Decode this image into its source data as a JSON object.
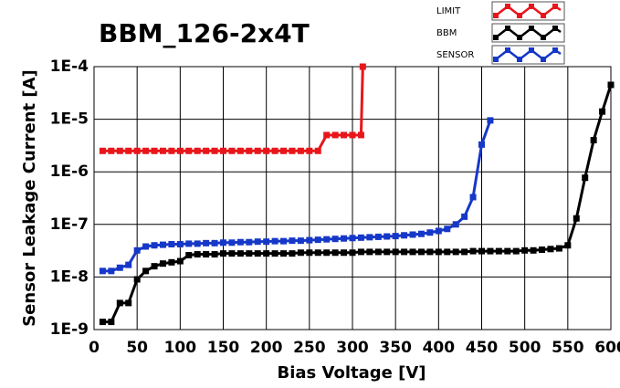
{
  "chart_data": {
    "type": "line",
    "title": "BBM_126-2x4T",
    "xlabel": "Bias Voltage [V]",
    "ylabel": "Sensor Leakage Current [A]",
    "log_y": true,
    "grid": true,
    "legend": "upper right",
    "xlim": [
      0,
      600
    ],
    "xticks": [
      0,
      50,
      100,
      150,
      200,
      250,
      300,
      350,
      400,
      450,
      500,
      550,
      600
    ],
    "ylim": [
      1e-09,
      0.0001
    ],
    "yticks": [
      {
        "value": 1e-09,
        "label": "1E-9"
      },
      {
        "value": 1e-08,
        "label": "1E-8"
      },
      {
        "value": 1e-07,
        "label": "1E-7"
      },
      {
        "value": 1e-06,
        "label": "1E-6"
      },
      {
        "value": 1e-05,
        "label": "1E-5"
      },
      {
        "value": 0.0001,
        "label": "1E-4"
      }
    ],
    "series": [
      {
        "name": "LIMIT",
        "color": "#e8161b",
        "x": [
          10,
          20,
          30,
          40,
          50,
          60,
          70,
          80,
          90,
          100,
          110,
          120,
          130,
          140,
          150,
          160,
          170,
          180,
          190,
          200,
          210,
          220,
          230,
          240,
          250,
          260,
          270,
          280,
          290,
          300,
          310,
          312
        ],
        "values": [
          2.5e-06,
          2.5e-06,
          2.5e-06,
          2.5e-06,
          2.5e-06,
          2.5e-06,
          2.5e-06,
          2.5e-06,
          2.5e-06,
          2.5e-06,
          2.5e-06,
          2.5e-06,
          2.5e-06,
          2.5e-06,
          2.5e-06,
          2.5e-06,
          2.5e-06,
          2.5e-06,
          2.5e-06,
          2.5e-06,
          2.5e-06,
          2.5e-06,
          2.5e-06,
          2.5e-06,
          2.5e-06,
          2.5e-06,
          5e-06,
          5e-06,
          5e-06,
          5e-06,
          5e-06,
          0.0001
        ]
      },
      {
        "name": "BBM",
        "color": "#000000",
        "x": [
          10,
          20,
          30,
          40,
          50,
          60,
          70,
          80,
          90,
          100,
          110,
          120,
          130,
          140,
          150,
          160,
          170,
          180,
          190,
          200,
          210,
          220,
          230,
          240,
          250,
          260,
          270,
          280,
          290,
          300,
          310,
          320,
          330,
          340,
          350,
          360,
          370,
          380,
          390,
          400,
          410,
          420,
          430,
          440,
          450,
          460,
          470,
          480,
          490,
          500,
          510,
          520,
          530,
          540,
          550,
          560,
          570,
          580,
          590,
          600
        ],
        "values": [
          1.4e-09,
          1.4e-09,
          3.2e-09,
          3.2e-09,
          9e-09,
          1.3e-08,
          1.6e-08,
          1.8e-08,
          1.9e-08,
          2e-08,
          2.6e-08,
          2.7e-08,
          2.7e-08,
          2.7e-08,
          2.8e-08,
          2.8e-08,
          2.8e-08,
          2.8e-08,
          2.8e-08,
          2.8e-08,
          2.8e-08,
          2.8e-08,
          2.8e-08,
          2.9e-08,
          2.9e-08,
          2.9e-08,
          2.9e-08,
          2.9e-08,
          2.9e-08,
          2.9e-08,
          3e-08,
          3e-08,
          3e-08,
          3e-08,
          3e-08,
          3e-08,
          3e-08,
          3e-08,
          3e-08,
          3e-08,
          3e-08,
          3e-08,
          3e-08,
          3.1e-08,
          3.1e-08,
          3.1e-08,
          3.1e-08,
          3.1e-08,
          3.1e-08,
          3.2e-08,
          3.2e-08,
          3.3e-08,
          3.4e-08,
          3.5e-08,
          4e-08,
          1.3e-07,
          7.7e-07,
          4e-06,
          1.4e-05,
          4.5e-05
        ]
      },
      {
        "name": "SENSOR",
        "color": "#1638c8",
        "x": [
          10,
          20,
          30,
          40,
          50,
          60,
          70,
          80,
          90,
          100,
          110,
          120,
          130,
          140,
          150,
          160,
          170,
          180,
          190,
          200,
          210,
          220,
          230,
          240,
          250,
          260,
          270,
          280,
          290,
          300,
          310,
          320,
          330,
          340,
          350,
          360,
          370,
          380,
          390,
          400,
          410,
          420,
          430,
          440,
          450,
          460
        ],
        "values": [
          1.3e-08,
          1.3e-08,
          1.5e-08,
          1.7e-08,
          3.2e-08,
          3.8e-08,
          4e-08,
          4.1e-08,
          4.2e-08,
          4.2e-08,
          4.3e-08,
          4.3e-08,
          4.4e-08,
          4.4e-08,
          4.5e-08,
          4.5e-08,
          4.6e-08,
          4.6e-08,
          4.7e-08,
          4.7e-08,
          4.8e-08,
          4.8e-08,
          4.9e-08,
          4.9e-08,
          5e-08,
          5.1e-08,
          5.2e-08,
          5.3e-08,
          5.4e-08,
          5.5e-08,
          5.6e-08,
          5.7e-08,
          5.8e-08,
          5.9e-08,
          6e-08,
          6.2e-08,
          6.4e-08,
          6.6e-08,
          7e-08,
          7.5e-08,
          8.2e-08,
          1e-07,
          1.4e-07,
          3.3e-07,
          3.3e-06,
          9.5e-06
        ]
      }
    ]
  }
}
